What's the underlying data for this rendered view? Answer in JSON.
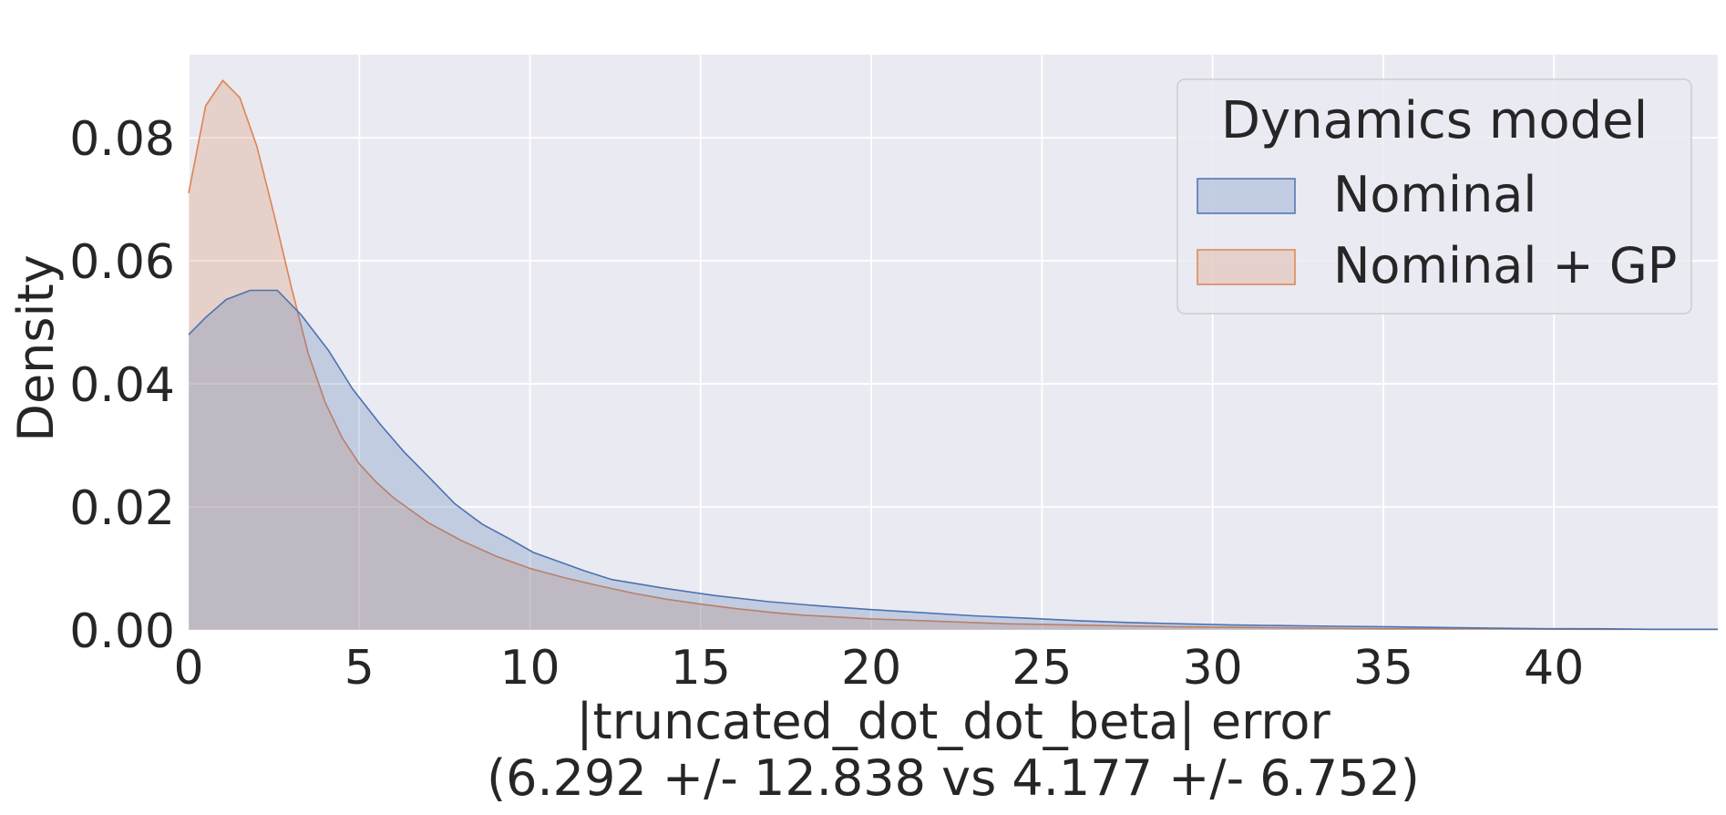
{
  "chart_data": {
    "type": "area",
    "xlabel": "|truncated_dot_dot_beta| error",
    "xlabel_line2": "(6.292 +/- 12.838 vs 4.177 +/- 6.752)",
    "ylabel": "Density",
    "xlim": [
      0,
      44.8
    ],
    "ylim": [
      0,
      0.0935
    ],
    "grid": true,
    "x_ticks": [
      "0",
      "5",
      "10",
      "15",
      "20",
      "25",
      "30",
      "35",
      "40"
    ],
    "y_ticks": [
      "0.00",
      "0.02",
      "0.04",
      "0.06",
      "0.08"
    ],
    "legend": {
      "title": "Dynamics model",
      "placement": "top-right"
    },
    "series": [
      {
        "name": "Nominal",
        "color": "#4c72b0",
        "x": [
          0,
          0.5,
          1.1,
          1.8,
          2.6,
          3.3,
          4.1,
          4.8,
          5.6,
          6.3,
          7.1,
          7.8,
          8.6,
          9.4,
          10.1,
          10.9,
          11.6,
          12.4,
          13.9,
          15.4,
          17.0,
          18.5,
          20.0,
          21.5,
          23.0,
          24.6,
          26.1,
          27.6,
          29.1,
          30.6,
          32.2,
          33.7,
          35.2,
          36.7,
          38.2,
          39.8,
          41.3,
          42.8,
          44.8
        ],
        "y": [
          0.048,
          0.0508,
          0.0537,
          0.0552,
          0.0552,
          0.0512,
          0.0454,
          0.0392,
          0.0335,
          0.029,
          0.0245,
          0.0205,
          0.0172,
          0.0148,
          0.0126,
          0.011,
          0.0096,
          0.0082,
          0.0068,
          0.0056,
          0.0046,
          0.0039,
          0.0033,
          0.0028,
          0.0023,
          0.0019,
          0.0015,
          0.0012,
          0.001,
          0.0008,
          0.0007,
          0.0006,
          0.0005,
          0.0004,
          0.0003,
          0.0002,
          0.0002,
          0.0001,
          0.0001
        ]
      },
      {
        "name": "Nominal + GP",
        "color": "#dd8452",
        "x": [
          0,
          0.5,
          1.0,
          1.5,
          2.0,
          2.5,
          3.0,
          3.5,
          4.0,
          4.5,
          5.0,
          5.5,
          6.0,
          7.0,
          8.0,
          9.0,
          10.0,
          11.0,
          12.0,
          13.0,
          14.0,
          15.0,
          16.0,
          17.0,
          18.0,
          19.0,
          20.0,
          21.0,
          22.0,
          23.0,
          24.0,
          25.0,
          27.0,
          29.0,
          31.0,
          33.0,
          35.0,
          38.0,
          41.0,
          44.8
        ],
        "y": [
          0.071,
          0.0852,
          0.0893,
          0.0865,
          0.0786,
          0.0676,
          0.0559,
          0.045,
          0.037,
          0.0312,
          0.027,
          0.024,
          0.0215,
          0.0175,
          0.0145,
          0.012,
          0.01,
          0.0085,
          0.0072,
          0.006,
          0.005,
          0.0042,
          0.0035,
          0.0029,
          0.0024,
          0.0021,
          0.0018,
          0.0016,
          0.0014,
          0.0012,
          0.001,
          0.0009,
          0.0007,
          0.0005,
          0.0004,
          0.0003,
          0.0002,
          0.0002,
          0.0001,
          0.0001
        ]
      }
    ]
  }
}
